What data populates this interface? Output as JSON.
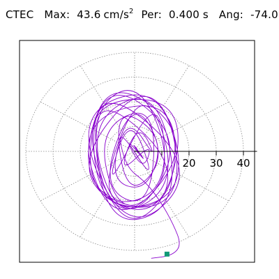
{
  "header": {
    "station": "CTEC",
    "max_label": "Max:",
    "max_value": "43.6",
    "max_unit": "cm/s",
    "max_unit_exp": "2",
    "per_label": "Per:",
    "per_value": "0.400 s",
    "ang_label": "Ang:",
    "ang_value": "-74.0"
  },
  "chart_data": {
    "type": "line",
    "title": "",
    "coordinate_system": "polar",
    "radial_ticks": [
      10,
      20,
      30,
      40
    ],
    "radial_tick_labels": [
      "20",
      "30",
      "40"
    ],
    "rmax": 45,
    "grid": true,
    "series": [
      {
        "values_description": "",
        "color": "#8800cc",
        "x": [
          0.4,
          2.6,
          -1.6,
          5.1,
          -3.9,
          3.2,
          6.8,
          -6.2,
          1.4,
          8.7,
          -2.8,
          -9.4,
          4.6,
          10.9,
          -7.7,
          -3.1,
          12.1,
          -0.4,
          -12.7,
          6.1,
          7.9,
          -14.3,
          -5.2,
          14.9,
          2.3,
          -16.8,
          -9.5,
          17.2,
          8.0,
          -18.4,
          -3.8,
          19.6,
          -10.9,
          -20.8,
          13.4,
          16.1,
          -22.5,
          -6.8,
          23.2,
          -12.1,
          -19.3,
          18.7,
          11.2,
          -23.4,
          -2.5,
          24.6,
          -15.8,
          -14.2,
          21.5,
          6.4,
          -24.9,
          9.8,
          20.1,
          -21.7,
          -4.3,
          19.4,
          -17.2,
          -10.4,
          16.9,
          3.1,
          -14.8,
          12.6,
          8.9,
          -11.4,
          -1.9,
          8.2,
          -6.5,
          -3.4,
          4.1,
          9.6,
          14.3,
          17.2,
          13.8,
          6.1
        ],
        "y": [
          1.8,
          -2.4,
          4.5,
          -5.6,
          6.3,
          -8.1,
          3.9,
          -9.8,
          12.3,
          -4.6,
          14.9,
          -11.7,
          -16.4,
          6.2,
          18.9,
          -19.5,
          -2.8,
          22.4,
          -14.6,
          -23.8,
          20.1,
          8.3,
          -27.9,
          -9.4,
          29.6,
          16.2,
          -31.8,
          -21.5,
          27.4,
          10.7,
          -33.2,
          3.5,
          31.4,
          -15.6,
          -26.8,
          22.7,
          12.3,
          -34.1,
          4.8,
          32.9,
          -20.6,
          -24.3,
          28.1,
          14.8,
          -35.6,
          -6.9,
          30.7,
          -26.4,
          -17.2,
          33.9,
          -9.5,
          -31.2,
          22.3,
          19.6,
          -36.5,
          -8.1,
          27.3,
          -29.4,
          -13.7,
          30.6,
          -22.8,
          -17.3,
          25.9,
          -19.2,
          16.7,
          -14.3,
          10.8,
          -6.2,
          -12.4,
          -20.3,
          -29.6,
          -37.8,
          -42.1,
          -43.2
        ]
      }
    ],
    "end_marker": {
      "x": 11.9,
      "y": -41.5,
      "color": "#119977"
    }
  }
}
